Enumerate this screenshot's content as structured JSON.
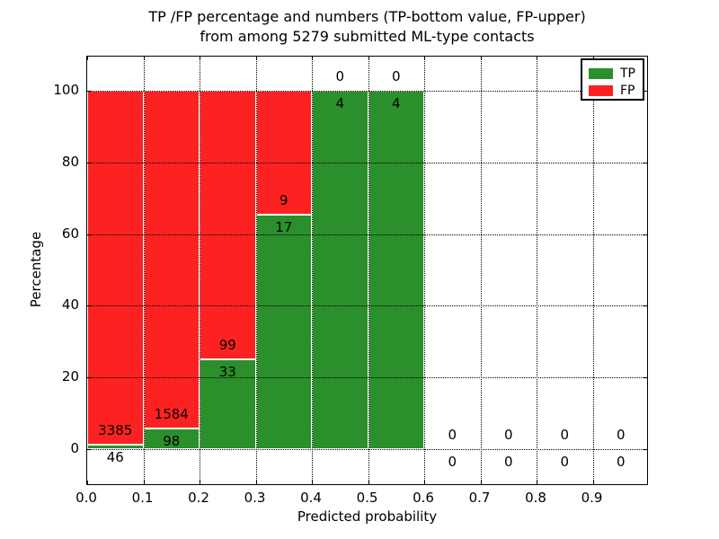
{
  "title": {
    "line1": "TP /FP percentage and numbers (TP-bottom value, FP-upper)",
    "line2": "from among 5279 submitted ML-type contacts"
  },
  "chart_data": {
    "type": "bar",
    "stacked": true,
    "title": "TP /FP percentage and numbers (TP-bottom value, FP-upper) from among 5279 submitted ML-type contacts",
    "xlabel": "Predicted probability",
    "ylabel": "Percentage",
    "x_tick_labels": [
      "0.0",
      "0.1",
      "0.2",
      "0.3",
      "0.4",
      "0.5",
      "0.6",
      "0.7",
      "0.8",
      "0.9"
    ],
    "y_tick_labels": [
      "0",
      "20",
      "40",
      "60",
      "80",
      "100"
    ],
    "y_tick_values": [
      0,
      20,
      40,
      60,
      80,
      100
    ],
    "x_range": [
      0.0,
      1.0
    ],
    "bin_width": 0.1,
    "grid": true,
    "legend_position": "upper right",
    "note": "Bars show percentage split per bin; labels are raw counts (TP lower label, FP upper label)",
    "bins": [
      {
        "x_start": 0.0,
        "x_end": 0.1,
        "tp": 46,
        "fp": 3385
      },
      {
        "x_start": 0.1,
        "x_end": 0.2,
        "tp": 98,
        "fp": 1584
      },
      {
        "x_start": 0.2,
        "x_end": 0.3,
        "tp": 33,
        "fp": 99
      },
      {
        "x_start": 0.3,
        "x_end": 0.4,
        "tp": 17,
        "fp": 9
      },
      {
        "x_start": 0.4,
        "x_end": 0.5,
        "tp": 4,
        "fp": 0
      },
      {
        "x_start": 0.5,
        "x_end": 0.6,
        "tp": 4,
        "fp": 0
      },
      {
        "x_start": 0.6,
        "x_end": 0.7,
        "tp": 0,
        "fp": 0
      },
      {
        "x_start": 0.7,
        "x_end": 0.8,
        "tp": 0,
        "fp": 0
      },
      {
        "x_start": 0.8,
        "x_end": 0.9,
        "tp": 0,
        "fp": 0
      },
      {
        "x_start": 0.9,
        "x_end": 1.0,
        "tp": 0,
        "fp": 0
      }
    ],
    "series": [
      {
        "name": "TP",
        "color": "#2b8f2b",
        "values": [
          46,
          98,
          33,
          17,
          4,
          4,
          0,
          0,
          0,
          0
        ]
      },
      {
        "name": "FP",
        "color": "#fd2222",
        "values": [
          3385,
          1584,
          99,
          9,
          0,
          0,
          0,
          0,
          0,
          0
        ]
      }
    ],
    "legend": [
      {
        "label": "TP",
        "color": "#2b8f2b"
      },
      {
        "label": "FP",
        "color": "#fd2222"
      }
    ],
    "total_contacts": 5279
  }
}
